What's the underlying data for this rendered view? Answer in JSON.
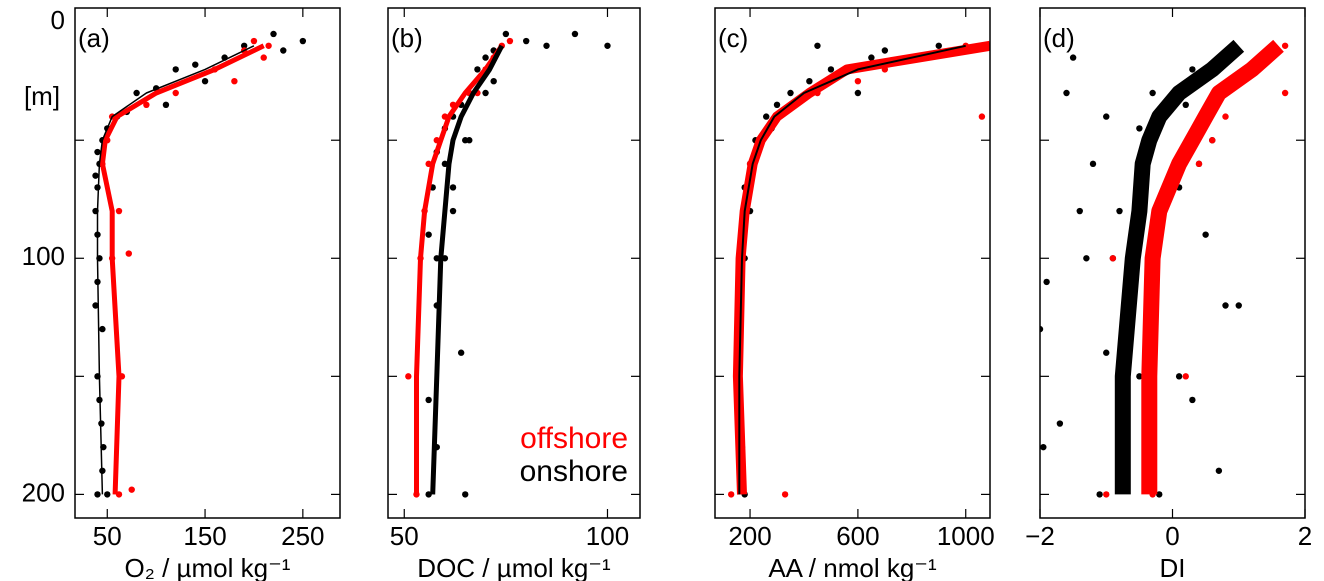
{
  "chart_data": [
    {
      "type": "scatter",
      "label": "(a)",
      "xlabel": "O₂ / µmol kg⁻¹",
      "ylabel": "[m]",
      "xlim": [
        17,
        288
      ],
      "xticks": [
        50,
        150,
        250
      ],
      "ylim": [
        -6,
        210
      ],
      "yticks": [
        0,
        100,
        200
      ],
      "ytick_marks": [
        50,
        100,
        150,
        200
      ],
      "series": [
        {
          "color": "#000000",
          "y": [
            5,
            8,
            10,
            12,
            15,
            18,
            20,
            25,
            28,
            30,
            35,
            38,
            40,
            45,
            50,
            55,
            60,
            65,
            70,
            80,
            90,
            100,
            110,
            120,
            130,
            150,
            160,
            170,
            180,
            190,
            200,
            200
          ],
          "x": [
            220,
            250,
            190,
            230,
            170,
            140,
            120,
            150,
            100,
            80,
            110,
            70,
            60,
            50,
            45,
            40,
            42,
            38,
            40,
            38,
            40,
            42,
            40,
            38,
            45,
            40,
            42,
            44,
            46,
            45,
            40,
            50
          ]
        },
        {
          "color": "#ff0000",
          "y": [
            8,
            10,
            12,
            15,
            20,
            25,
            30,
            35,
            40,
            50,
            60,
            80,
            98,
            100,
            150,
            198,
            200
          ],
          "x": [
            200,
            215,
            190,
            210,
            160,
            180,
            120,
            90,
            55,
            50,
            45,
            62,
            72,
            55,
            65,
            75,
            62
          ]
        }
      ],
      "profiles": [
        {
          "color": "#ff0000",
          "width": 5,
          "y": [
            10,
            20,
            30,
            40,
            50,
            60,
            80,
            100,
            150,
            200
          ],
          "x": [
            210,
            160,
            100,
            60,
            48,
            45,
            55,
            55,
            62,
            58
          ]
        },
        {
          "color": "#000000",
          "width": 1.5,
          "y": [
            10,
            20,
            30,
            40,
            50,
            60,
            80,
            100,
            150,
            200
          ],
          "x": [
            200,
            150,
            90,
            55,
            45,
            42,
            40,
            40,
            42,
            45
          ]
        }
      ]
    },
    {
      "type": "scatter",
      "label": "(b)",
      "xlabel": "DOC / µmol kg⁻¹",
      "xlim": [
        46,
        108
      ],
      "xticks": [
        50,
        100
      ],
      "ylim": [
        -6,
        210
      ],
      "ytick_marks": [
        50,
        100,
        150,
        200
      ],
      "legend": "lower right",
      "series": [
        {
          "name": "onshore",
          "color": "#000000",
          "y": [
            5,
            8,
            10,
            12,
            15,
            20,
            25,
            30,
            35,
            40,
            45,
            50,
            55,
            60,
            70,
            80,
            90,
            100,
            120,
            140,
            160,
            180,
            200,
            5,
            10,
            30,
            50,
            70,
            100,
            200
          ],
          "x": [
            75,
            80,
            100,
            72,
            70,
            68,
            72,
            66,
            64,
            62,
            60,
            66,
            58,
            60,
            57,
            62,
            56,
            58,
            58,
            64,
            56,
            58,
            56,
            92,
            85,
            70,
            65,
            62,
            60,
            65
          ]
        },
        {
          "name": "offshore",
          "color": "#ff0000",
          "y": [
            8,
            10,
            15,
            20,
            30,
            35,
            40,
            50,
            60,
            80,
            100,
            150,
            200,
            30
          ],
          "x": [
            76,
            74,
            72,
            70,
            66,
            62,
            60,
            58,
            56,
            55,
            54,
            51,
            53,
            68
          ]
        }
      ],
      "profiles": [
        {
          "color": "#ff0000",
          "width": 5,
          "y": [
            10,
            20,
            30,
            40,
            50,
            60,
            80,
            100,
            150,
            200
          ],
          "x": [
            74,
            70,
            65,
            61,
            59,
            57,
            55,
            54,
            53,
            53
          ]
        },
        {
          "color": "#000000",
          "width": 5,
          "y": [
            10,
            20,
            30,
            40,
            50,
            60,
            80,
            100,
            150,
            200
          ],
          "x": [
            74,
            71,
            67,
            64,
            62,
            61,
            60,
            59,
            58,
            57
          ]
        }
      ]
    },
    {
      "type": "scatter",
      "label": "(c)",
      "xlabel": "AA / nmol kg⁻¹",
      "xlim": [
        70,
        1090
      ],
      "xticks": [
        200,
        600,
        1000
      ],
      "ylim": [
        -6,
        210
      ],
      "ytick_marks": [
        50,
        100,
        150,
        200
      ],
      "series": [
        {
          "color": "#000000",
          "y": [
            10,
            12,
            15,
            20,
            25,
            30,
            35,
            40,
            50,
            60,
            70,
            80,
            90,
            100,
            120,
            150,
            180,
            200,
            10,
            30,
            45
          ],
          "x": [
            900,
            700,
            650,
            500,
            420,
            350,
            300,
            260,
            220,
            200,
            180,
            200,
            170,
            180,
            160,
            150,
            170,
            180,
            450,
            600,
            280
          ]
        },
        {
          "color": "#ff0000",
          "y": [
            10,
            15,
            20,
            25,
            30,
            40,
            50,
            60,
            80,
            100,
            150,
            200,
            40,
            200
          ],
          "x": [
            1000,
            800,
            700,
            600,
            450,
            300,
            240,
            200,
            180,
            160,
            150,
            130,
            1060,
            330
          ]
        }
      ],
      "profiles": [
        {
          "color": "#ff0000",
          "width": 10,
          "y": [
            10,
            20,
            30,
            40,
            50,
            60,
            80,
            100,
            150,
            200
          ],
          "x": [
            1090,
            560,
            420,
            300,
            240,
            210,
            180,
            165,
            155,
            170
          ]
        },
        {
          "color": "#000000",
          "width": 2,
          "y": [
            10,
            20,
            30,
            40,
            50,
            60,
            80,
            100,
            150,
            200
          ],
          "x": [
            1000,
            600,
            400,
            290,
            240,
            210,
            180,
            170,
            160,
            160
          ]
        }
      ]
    },
    {
      "type": "scatter",
      "label": "(d)",
      "xlabel": "DI",
      "xlim": [
        -2,
        2
      ],
      "xticks": [
        {
          "value": -2,
          "label": "−2"
        },
        0,
        2
      ],
      "ylim": [
        -6,
        210
      ],
      "ytick_marks": [
        50,
        100,
        150,
        200
      ],
      "series": [
        {
          "color": "#000000",
          "y": [
            10,
            15,
            20,
            30,
            35,
            40,
            45,
            50,
            60,
            70,
            80,
            90,
            100,
            110,
            120,
            130,
            140,
            150,
            160,
            170,
            180,
            190,
            200,
            30,
            60,
            100,
            150,
            200,
            80,
            120
          ],
          "x": [
            0.9,
            -1.5,
            0.3,
            -1.6,
            0.2,
            -1.0,
            -0.5,
            0.6,
            -1.2,
            0.1,
            -0.8,
            0.5,
            -1.3,
            -1.9,
            0.8,
            -2.0,
            -1.0,
            -0.5,
            0.3,
            -1.7,
            -1.95,
            0.7,
            -1.1,
            -0.3,
            0.4,
            -0.9,
            0.1,
            -0.2,
            -1.4,
            1.0
          ]
        },
        {
          "color": "#ff0000",
          "y": [
            10,
            15,
            20,
            30,
            40,
            50,
            60,
            80,
            100,
            150,
            200,
            200
          ],
          "x": [
            1.7,
            1.5,
            1.3,
            1.7,
            0.8,
            0.6,
            0.4,
            -0.2,
            -0.9,
            0.2,
            -1.0,
            -0.3
          ]
        }
      ],
      "profiles": [
        {
          "color": "#ff0000",
          "width": 16,
          "y": [
            10,
            20,
            30,
            40,
            50,
            60,
            80,
            100,
            150,
            200
          ],
          "x": [
            1.6,
            1.2,
            0.7,
            0.5,
            0.3,
            0.1,
            -0.2,
            -0.3,
            -0.35,
            -0.35
          ]
        },
        {
          "color": "#000000",
          "width": 16,
          "y": [
            10,
            20,
            30,
            40,
            50,
            60,
            80,
            100,
            150,
            200
          ],
          "x": [
            1.0,
            0.6,
            0.1,
            -0.2,
            -0.35,
            -0.45,
            -0.5,
            -0.6,
            -0.75,
            -0.75
          ]
        }
      ]
    }
  ]
}
